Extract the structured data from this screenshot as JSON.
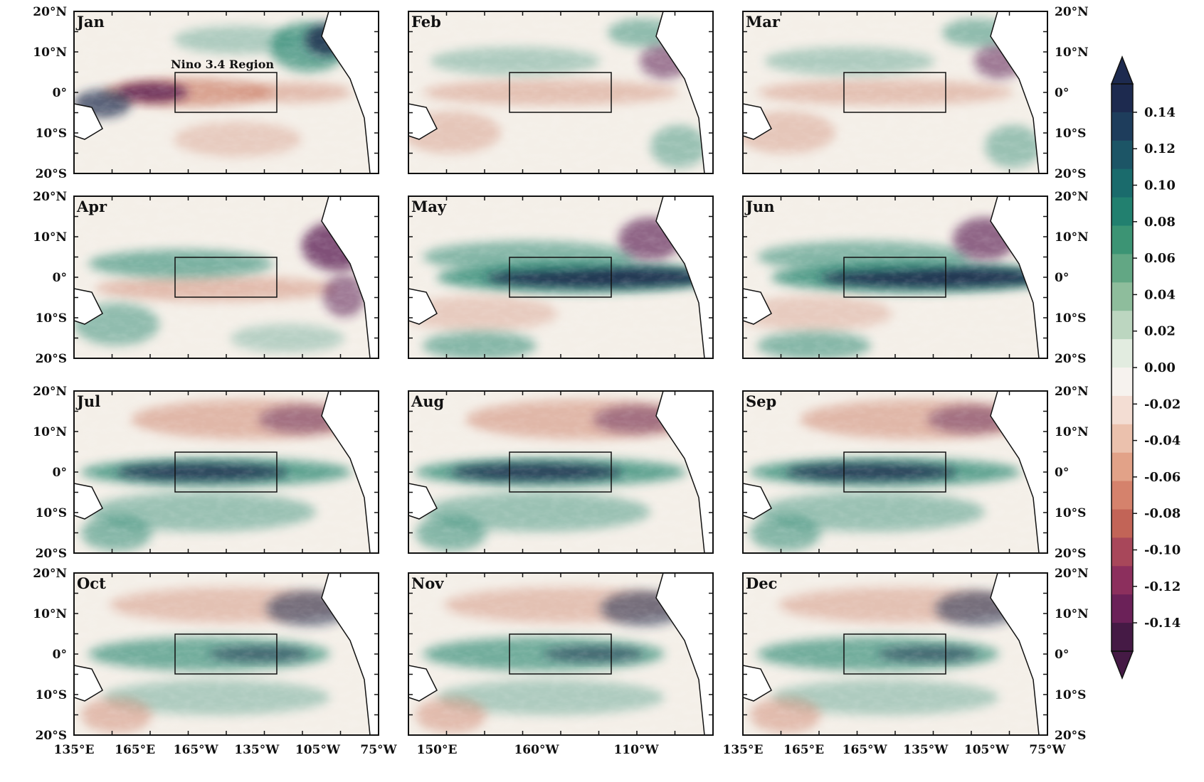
{
  "figure": {
    "panels": [
      {
        "label": "Jan",
        "pattern": "neg_equator"
      },
      {
        "label": "Feb",
        "pattern": "weak_neg"
      },
      {
        "label": "Mar",
        "pattern": "weak_neg"
      },
      {
        "label": "Apr",
        "pattern": "neg_band"
      },
      {
        "label": "May",
        "pattern": "pos_strong"
      },
      {
        "label": "Jun",
        "pattern": "pos_strong"
      },
      {
        "label": "Jul",
        "pattern": "pos_mid"
      },
      {
        "label": "Aug",
        "pattern": "pos_mid"
      },
      {
        "label": "Sep",
        "pattern": "pos_mid"
      },
      {
        "label": "Oct",
        "pattern": "pos_weak"
      },
      {
        "label": "Nov",
        "pattern": "pos_weak"
      },
      {
        "label": "Dec",
        "pattern": "pos_weak"
      }
    ],
    "lat_labels": [
      "20°N",
      "10°N",
      "0°",
      "10°S",
      "20°S"
    ],
    "lon_labels_left": [
      "135°E",
      "165°E",
      "165°W",
      "135°W",
      "105°W",
      "75°W"
    ],
    "lon_labels_mid": [
      "150°E",
      "160°W",
      "110°W"
    ],
    "lon_labels_right": [
      "135°E",
      "165°E",
      "165°W",
      "135°W",
      "105°W",
      "75°W"
    ],
    "annotation": "Nino 3.4 Region",
    "colorbar": {
      "labels": [
        "0.14",
        "0.12",
        "0.10",
        "0.08",
        "0.06",
        "0.04",
        "0.02",
        "0.00",
        "-0.02",
        "-0.04",
        "-0.06",
        "-0.08",
        "-0.10",
        "-0.12",
        "-0.14"
      ],
      "colors": [
        "#1d2a4f",
        "#1e3d5c",
        "#1c5566",
        "#1a6b6c",
        "#22806f",
        "#3c9474",
        "#62a784",
        "#8ebd9c",
        "#bcd6c0",
        "#e2ece0",
        "#f6f2ee",
        "#f3ddd3",
        "#ebc1ad",
        "#e2a288",
        "#d5826c",
        "#c26457",
        "#a8475a",
        "#8c2f5d",
        "#6b2158",
        "#451a45"
      ]
    },
    "colors": {
      "deep_pos": "#1b2a4e",
      "pos": "#2f8a74",
      "neutral": "#f4efe8",
      "neg": "#d08a74",
      "deep_neg": "#5a1f52",
      "land": "#ffffff"
    }
  }
}
